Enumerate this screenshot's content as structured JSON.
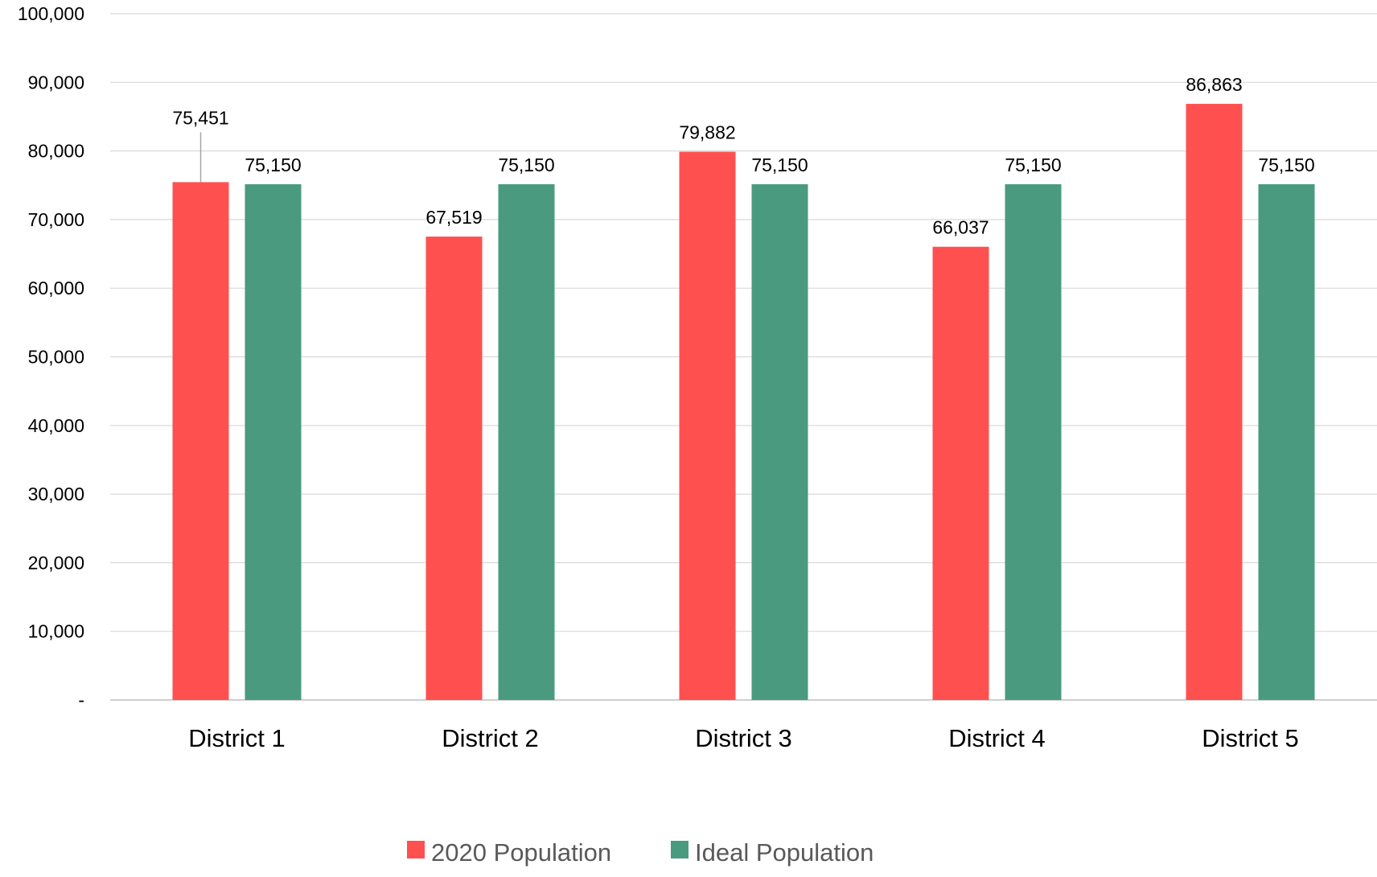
{
  "chart_data": {
    "type": "bar",
    "title": "",
    "xlabel": "",
    "ylabel": "",
    "categories": [
      "District 1",
      "District 2",
      "District 3",
      "District 4",
      "District 5"
    ],
    "series": [
      {
        "name": "2020 Population",
        "color": "#FF5050",
        "values": [
          75451,
          67519,
          79882,
          66037,
          86863
        ],
        "labels": [
          "75,451",
          "67,519",
          "79,882",
          "66,037",
          "86,863"
        ]
      },
      {
        "name": "Ideal Population",
        "color": "#4A9A80",
        "values": [
          75150,
          75150,
          75150,
          75150,
          75150
        ],
        "labels": [
          "75,150",
          "75,150",
          "75,150",
          "75,150",
          "75,150"
        ]
      }
    ],
    "ylim": [
      0,
      100000
    ],
    "yticks": [
      0,
      10000,
      20000,
      30000,
      40000,
      50000,
      60000,
      70000,
      80000,
      90000,
      100000
    ],
    "ytick_labels": [
      "-",
      "10,000",
      "20,000",
      "30,000",
      "40,000",
      "50,000",
      "60,000",
      "70,000",
      "80,000",
      "90,000",
      "100,000"
    ],
    "grid": true,
    "legend_position": "bottom"
  }
}
